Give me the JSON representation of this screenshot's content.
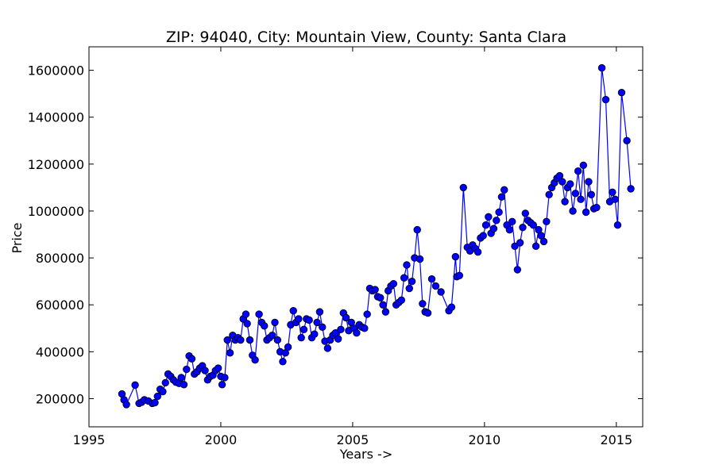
{
  "chart_data": {
    "type": "line",
    "title": "ZIP: 94040, City: Mountain View, County: Santa Clara",
    "xlabel": "Years ->",
    "ylabel": "Price",
    "xlim": [
      1995,
      2016
    ],
    "ylim": [
      80000,
      1700000
    ],
    "xticks": [
      1995,
      2000,
      2005,
      2010,
      2015
    ],
    "yticks": [
      200000,
      400000,
      600000,
      800000,
      1000000,
      1200000,
      1400000,
      1600000
    ],
    "grid": false,
    "series": [
      {
        "color": "#0000ff",
        "marker": "circle",
        "points": [
          [
            1996.25,
            220000
          ],
          [
            1996.33,
            195000
          ],
          [
            1996.42,
            175000
          ],
          [
            1996.75,
            258000
          ],
          [
            1996.9,
            180000
          ],
          [
            1997.0,
            185000
          ],
          [
            1997.1,
            195000
          ],
          [
            1997.25,
            190000
          ],
          [
            1997.4,
            180000
          ],
          [
            1997.5,
            183000
          ],
          [
            1997.6,
            210000
          ],
          [
            1997.7,
            240000
          ],
          [
            1997.8,
            230000
          ],
          [
            1997.9,
            268000
          ],
          [
            1998.0,
            305000
          ],
          [
            1998.1,
            295000
          ],
          [
            1998.2,
            280000
          ],
          [
            1998.3,
            270000
          ],
          [
            1998.42,
            265000
          ],
          [
            1998.5,
            290000
          ],
          [
            1998.6,
            260000
          ],
          [
            1998.7,
            325000
          ],
          [
            1998.8,
            382000
          ],
          [
            1998.9,
            370000
          ],
          [
            1999.0,
            305000
          ],
          [
            1999.1,
            315000
          ],
          [
            1999.2,
            330000
          ],
          [
            1999.3,
            340000
          ],
          [
            1999.4,
            320000
          ],
          [
            1999.5,
            280000
          ],
          [
            1999.6,
            295000
          ],
          [
            1999.7,
            300000
          ],
          [
            1999.8,
            320000
          ],
          [
            1999.9,
            330000
          ],
          [
            2000.0,
            295000
          ],
          [
            2000.05,
            260000
          ],
          [
            2000.15,
            290000
          ],
          [
            2000.25,
            450000
          ],
          [
            2000.35,
            395000
          ],
          [
            2000.45,
            470000
          ],
          [
            2000.55,
            450000
          ],
          [
            2000.65,
            460000
          ],
          [
            2000.75,
            450000
          ],
          [
            2000.85,
            540000
          ],
          [
            2000.95,
            560000
          ],
          [
            2001.0,
            520000
          ],
          [
            2001.1,
            450000
          ],
          [
            2001.2,
            385000
          ],
          [
            2001.3,
            365000
          ],
          [
            2001.45,
            560000
          ],
          [
            2001.55,
            525000
          ],
          [
            2001.65,
            510000
          ],
          [
            2001.75,
            450000
          ],
          [
            2001.85,
            460000
          ],
          [
            2001.95,
            470000
          ],
          [
            2002.05,
            525000
          ],
          [
            2002.15,
            450000
          ],
          [
            2002.25,
            400000
          ],
          [
            2002.35,
            358000
          ],
          [
            2002.45,
            395000
          ],
          [
            2002.55,
            420000
          ],
          [
            2002.65,
            515000
          ],
          [
            2002.75,
            575000
          ],
          [
            2002.85,
            525000
          ],
          [
            2002.95,
            540000
          ],
          [
            2003.05,
            460000
          ],
          [
            2003.15,
            495000
          ],
          [
            2003.25,
            540000
          ],
          [
            2003.35,
            535000
          ],
          [
            2003.45,
            460000
          ],
          [
            2003.55,
            475000
          ],
          [
            2003.65,
            525000
          ],
          [
            2003.75,
            570000
          ],
          [
            2003.85,
            505000
          ],
          [
            2003.95,
            445000
          ],
          [
            2004.05,
            415000
          ],
          [
            2004.15,
            450000
          ],
          [
            2004.25,
            470000
          ],
          [
            2004.35,
            480000
          ],
          [
            2004.45,
            455000
          ],
          [
            2004.55,
            495000
          ],
          [
            2004.65,
            565000
          ],
          [
            2004.75,
            545000
          ],
          [
            2004.85,
            490000
          ],
          [
            2004.95,
            525000
          ],
          [
            2005.05,
            500000
          ],
          [
            2005.15,
            480000
          ],
          [
            2005.25,
            515000
          ],
          [
            2005.35,
            505000
          ],
          [
            2005.45,
            500000
          ],
          [
            2005.55,
            560000
          ],
          [
            2005.65,
            670000
          ],
          [
            2005.75,
            660000
          ],
          [
            2005.85,
            665000
          ],
          [
            2005.95,
            635000
          ],
          [
            2006.05,
            630000
          ],
          [
            2006.15,
            600000
          ],
          [
            2006.25,
            570000
          ],
          [
            2006.35,
            660000
          ],
          [
            2006.45,
            680000
          ],
          [
            2006.55,
            690000
          ],
          [
            2006.65,
            600000
          ],
          [
            2006.75,
            610000
          ],
          [
            2006.85,
            620000
          ],
          [
            2006.95,
            715000
          ],
          [
            2007.05,
            770000
          ],
          [
            2007.15,
            670000
          ],
          [
            2007.25,
            700000
          ],
          [
            2007.35,
            800000
          ],
          [
            2007.45,
            920000
          ],
          [
            2007.55,
            795000
          ],
          [
            2007.65,
            605000
          ],
          [
            2007.75,
            570000
          ],
          [
            2007.85,
            565000
          ],
          [
            2008.0,
            710000
          ],
          [
            2008.15,
            680000
          ],
          [
            2008.35,
            655000
          ],
          [
            2008.65,
            575000
          ],
          [
            2008.75,
            590000
          ],
          [
            2008.9,
            805000
          ],
          [
            2008.95,
            720000
          ],
          [
            2009.05,
            725000
          ],
          [
            2009.2,
            1100000
          ],
          [
            2009.35,
            845000
          ],
          [
            2009.45,
            830000
          ],
          [
            2009.55,
            855000
          ],
          [
            2009.65,
            840000
          ],
          [
            2009.75,
            825000
          ],
          [
            2009.85,
            885000
          ],
          [
            2009.95,
            895000
          ],
          [
            2010.05,
            940000
          ],
          [
            2010.15,
            975000
          ],
          [
            2010.25,
            905000
          ],
          [
            2010.35,
            925000
          ],
          [
            2010.45,
            960000
          ],
          [
            2010.55,
            995000
          ],
          [
            2010.65,
            1060000
          ],
          [
            2010.75,
            1090000
          ],
          [
            2010.85,
            940000
          ],
          [
            2010.95,
            920000
          ],
          [
            2011.05,
            955000
          ],
          [
            2011.15,
            850000
          ],
          [
            2011.25,
            750000
          ],
          [
            2011.35,
            865000
          ],
          [
            2011.45,
            930000
          ],
          [
            2011.55,
            990000
          ],
          [
            2011.65,
            960000
          ],
          [
            2011.75,
            950000
          ],
          [
            2011.85,
            940000
          ],
          [
            2011.95,
            850000
          ],
          [
            2012.05,
            920000
          ],
          [
            2012.15,
            895000
          ],
          [
            2012.25,
            870000
          ],
          [
            2012.35,
            955000
          ],
          [
            2012.45,
            1070000
          ],
          [
            2012.55,
            1100000
          ],
          [
            2012.65,
            1120000
          ],
          [
            2012.75,
            1140000
          ],
          [
            2012.85,
            1150000
          ],
          [
            2012.95,
            1125000
          ],
          [
            2013.05,
            1040000
          ],
          [
            2013.15,
            1100000
          ],
          [
            2013.25,
            1115000
          ],
          [
            2013.35,
            1000000
          ],
          [
            2013.45,
            1075000
          ],
          [
            2013.55,
            1170000
          ],
          [
            2013.65,
            1050000
          ],
          [
            2013.75,
            1195000
          ],
          [
            2013.85,
            995000
          ],
          [
            2013.95,
            1125000
          ],
          [
            2014.05,
            1070000
          ],
          [
            2014.15,
            1010000
          ],
          [
            2014.25,
            1015000
          ],
          [
            2014.45,
            1610000
          ],
          [
            2014.6,
            1475000
          ],
          [
            2014.75,
            1040000
          ],
          [
            2014.85,
            1080000
          ],
          [
            2014.95,
            1050000
          ],
          [
            2015.05,
            940000
          ],
          [
            2015.2,
            1505000
          ],
          [
            2015.4,
            1300000
          ],
          [
            2015.55,
            1095000
          ]
        ]
      }
    ]
  }
}
